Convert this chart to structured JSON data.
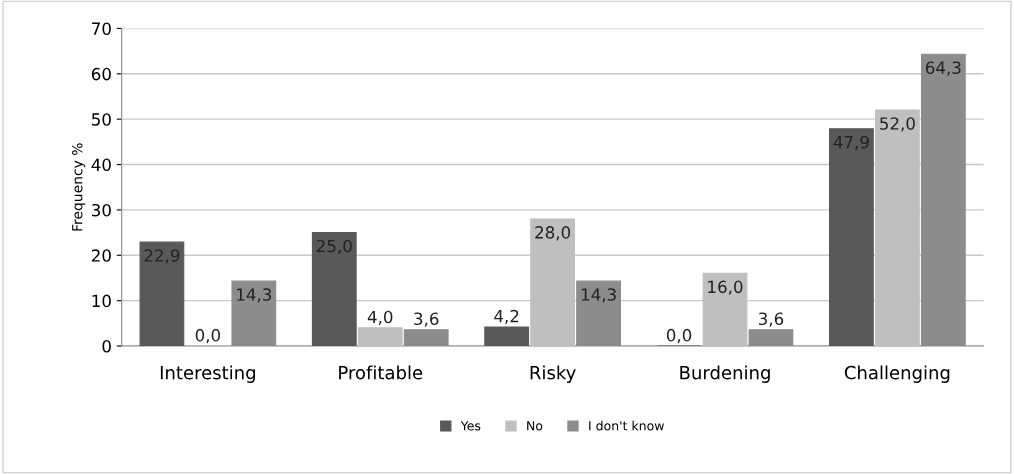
{
  "chart_data": {
    "type": "bar",
    "ylabel": "Frequency %",
    "categories": [
      "Interesting",
      "Profitable",
      "Risky",
      "Burdening",
      "Challenging"
    ],
    "series": [
      {
        "name": "Yes",
        "color": "#595959",
        "values": [
          22.9,
          25.0,
          4.2,
          0.0,
          47.9
        ],
        "value_labels": [
          "22,9",
          "25,0",
          "4,2",
          "0,0",
          "47,9"
        ]
      },
      {
        "name": "No",
        "color": "#bfbfbf",
        "values": [
          0.0,
          4.0,
          28.0,
          16.0,
          52.0
        ],
        "value_labels": [
          "0,0",
          "4,0",
          "28,0",
          "16,0",
          "52,0"
        ]
      },
      {
        "name": "I don't know",
        "color": "#8c8c8c",
        "values": [
          14.3,
          3.6,
          14.3,
          3.6,
          64.3
        ],
        "value_labels": [
          "14,3",
          "3,6",
          "14,3",
          "3,6",
          "64,3"
        ]
      }
    ],
    "ylim": [
      0,
      70
    ],
    "yticks": [
      0,
      10,
      20,
      30,
      40,
      50,
      60,
      70
    ],
    "grid": "y",
    "legend": "bottom"
  }
}
